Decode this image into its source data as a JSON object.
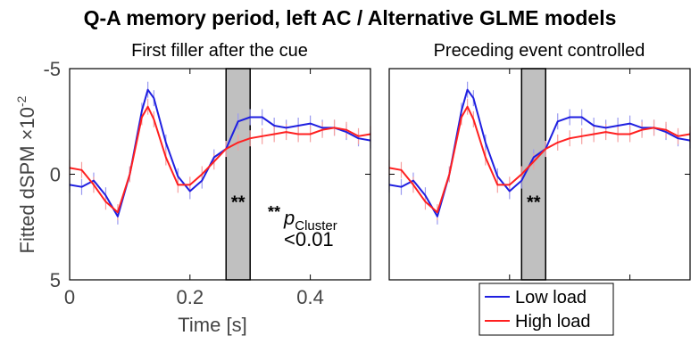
{
  "figure": {
    "title": "Q-A memory period, left AC / Alternative GLME models",
    "ylabel_main": "Fitted dSPM ×10",
    "ylabel_exponent": "-2",
    "significance_note": {
      "stars": "**",
      "p_letter": "p",
      "p_subscript": "Cluster",
      "threshold": "<0.01"
    },
    "legend": {
      "items": [
        {
          "label": "Low load",
          "color": "#1f1fe0"
        },
        {
          "label": "High load",
          "color": "#ff1f1f"
        }
      ]
    }
  },
  "chart_data": [
    {
      "type": "line",
      "title": "First filler after the cue",
      "xlabel": "Time [s]",
      "ylabel": "Fitted dSPM ×10-2",
      "xlim": [
        0,
        0.5
      ],
      "ylim": [
        5,
        -5
      ],
      "y_reversed": true,
      "xticks": [
        0,
        0.2,
        0.4
      ],
      "xtick_labels": [
        "0",
        "0.2",
        "0.4"
      ],
      "yticks": [
        -5,
        0,
        5
      ],
      "ytick_labels": [
        "-5",
        "0",
        "5"
      ],
      "grid": false,
      "significance_window": {
        "start": 0.26,
        "end": 0.3,
        "label": "**"
      },
      "series": [
        {
          "name": "Low load",
          "color": "#1f1fe0",
          "x": [
            0,
            0.02,
            0.04,
            0.06,
            0.08,
            0.1,
            0.12,
            0.13,
            0.14,
            0.16,
            0.18,
            0.2,
            0.22,
            0.24,
            0.26,
            0.28,
            0.3,
            0.32,
            0.34,
            0.36,
            0.38,
            0.4,
            0.42,
            0.44,
            0.46,
            0.48,
            0.5
          ],
          "y": [
            0.5,
            0.6,
            0.3,
            1.0,
            2.0,
            0.0,
            -3.0,
            -4.0,
            -3.6,
            -1.5,
            0.1,
            0.8,
            0.3,
            -0.8,
            -1.2,
            -2.5,
            -2.7,
            -2.7,
            -2.3,
            -2.2,
            -2.3,
            -2.4,
            -2.2,
            -2.2,
            -2.0,
            -1.7,
            -1.6
          ]
        },
        {
          "name": "High load",
          "color": "#ff1f1f",
          "x": [
            0,
            0.02,
            0.04,
            0.06,
            0.08,
            0.1,
            0.12,
            0.13,
            0.14,
            0.16,
            0.18,
            0.2,
            0.22,
            0.24,
            0.26,
            0.28,
            0.3,
            0.32,
            0.34,
            0.36,
            0.38,
            0.4,
            0.42,
            0.44,
            0.46,
            0.48,
            0.5
          ],
          "y": [
            -0.3,
            -0.2,
            0.5,
            1.3,
            1.8,
            0.0,
            -2.7,
            -3.2,
            -2.6,
            -0.8,
            0.5,
            0.5,
            0.0,
            -0.6,
            -1.2,
            -1.5,
            -1.7,
            -1.8,
            -1.9,
            -2.0,
            -1.9,
            -1.9,
            -2.1,
            -2.2,
            -2.1,
            -1.8,
            -1.9
          ]
        }
      ]
    },
    {
      "type": "line",
      "title": "Preceding event controlled",
      "xlim": [
        0,
        0.5
      ],
      "ylim": [
        5,
        -5
      ],
      "y_reversed": true,
      "xticks": [
        0,
        0.2,
        0.4
      ],
      "yticks": [
        -5,
        0,
        5
      ],
      "grid": false,
      "significance_window": {
        "start": 0.22,
        "end": 0.26,
        "label": "**"
      },
      "series": [
        {
          "name": "Low load",
          "color": "#1f1fe0",
          "x": [
            0,
            0.02,
            0.04,
            0.06,
            0.08,
            0.1,
            0.12,
            0.13,
            0.14,
            0.16,
            0.18,
            0.2,
            0.22,
            0.24,
            0.26,
            0.28,
            0.3,
            0.32,
            0.34,
            0.36,
            0.38,
            0.4,
            0.42,
            0.44,
            0.46,
            0.48,
            0.5
          ],
          "y": [
            0.5,
            0.6,
            0.3,
            1.0,
            2.0,
            0.0,
            -3.0,
            -4.0,
            -3.6,
            -1.5,
            0.1,
            0.8,
            0.3,
            -0.8,
            -1.2,
            -2.5,
            -2.7,
            -2.7,
            -2.3,
            -2.2,
            -2.3,
            -2.4,
            -2.2,
            -2.2,
            -2.0,
            -1.7,
            -1.6
          ]
        },
        {
          "name": "High load",
          "color": "#ff1f1f",
          "x": [
            0,
            0.02,
            0.04,
            0.06,
            0.08,
            0.1,
            0.12,
            0.13,
            0.14,
            0.16,
            0.18,
            0.2,
            0.22,
            0.24,
            0.26,
            0.28,
            0.3,
            0.32,
            0.34,
            0.36,
            0.38,
            0.4,
            0.42,
            0.44,
            0.46,
            0.48,
            0.5
          ],
          "y": [
            -0.3,
            -0.2,
            0.5,
            1.3,
            1.8,
            0.0,
            -2.7,
            -3.2,
            -2.6,
            -0.8,
            0.5,
            0.5,
            0.0,
            -0.6,
            -1.2,
            -1.5,
            -1.7,
            -1.8,
            -1.9,
            -2.0,
            -1.9,
            -1.9,
            -2.1,
            -2.2,
            -2.1,
            -1.8,
            -1.9
          ]
        }
      ]
    }
  ]
}
